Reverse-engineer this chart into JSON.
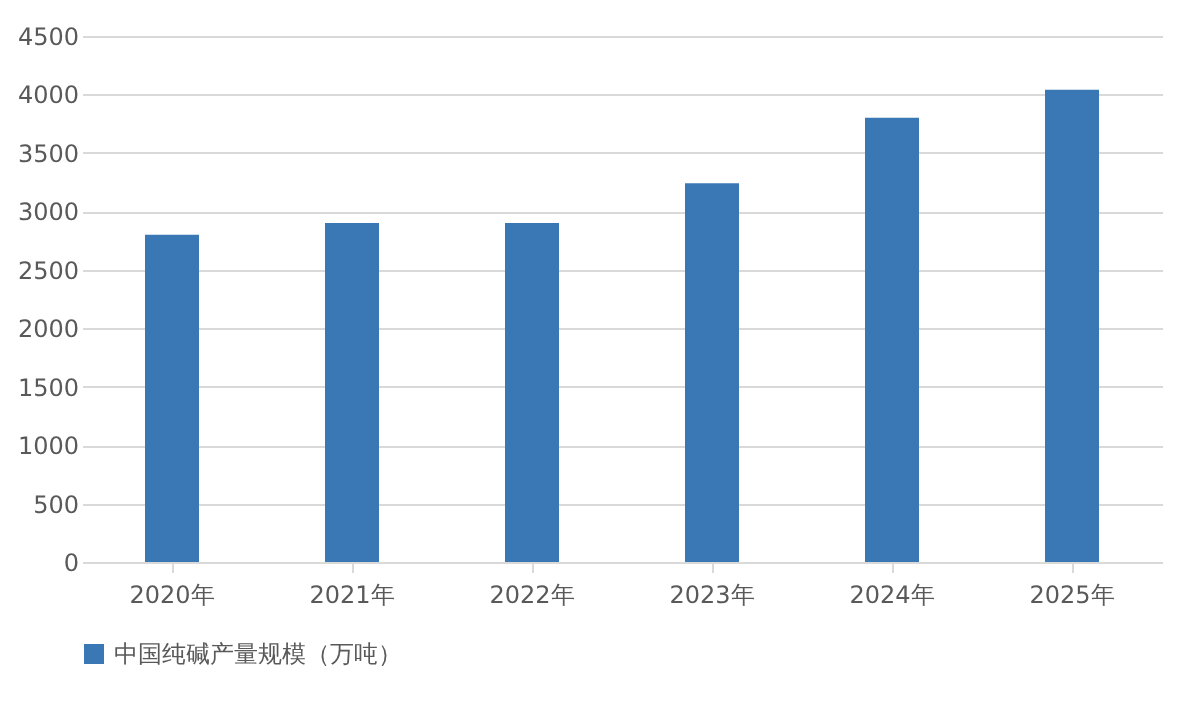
{
  "chart_data": {
    "type": "bar",
    "categories": [
      "2020年",
      "2021年",
      "2022年",
      "2023年",
      "2024年",
      "2025年"
    ],
    "series": [
      {
        "name": "中国纯碱产量规模（万吨）",
        "color": "#3a78b5",
        "values": [
          2800,
          2900,
          2900,
          3240,
          3800,
          4040
        ]
      }
    ],
    "ylim": [
      0,
      4500
    ],
    "yticks": [
      0,
      500,
      1000,
      1500,
      2000,
      2500,
      3000,
      3500,
      4000,
      4500
    ],
    "grid": "y",
    "legend": "bottom"
  }
}
